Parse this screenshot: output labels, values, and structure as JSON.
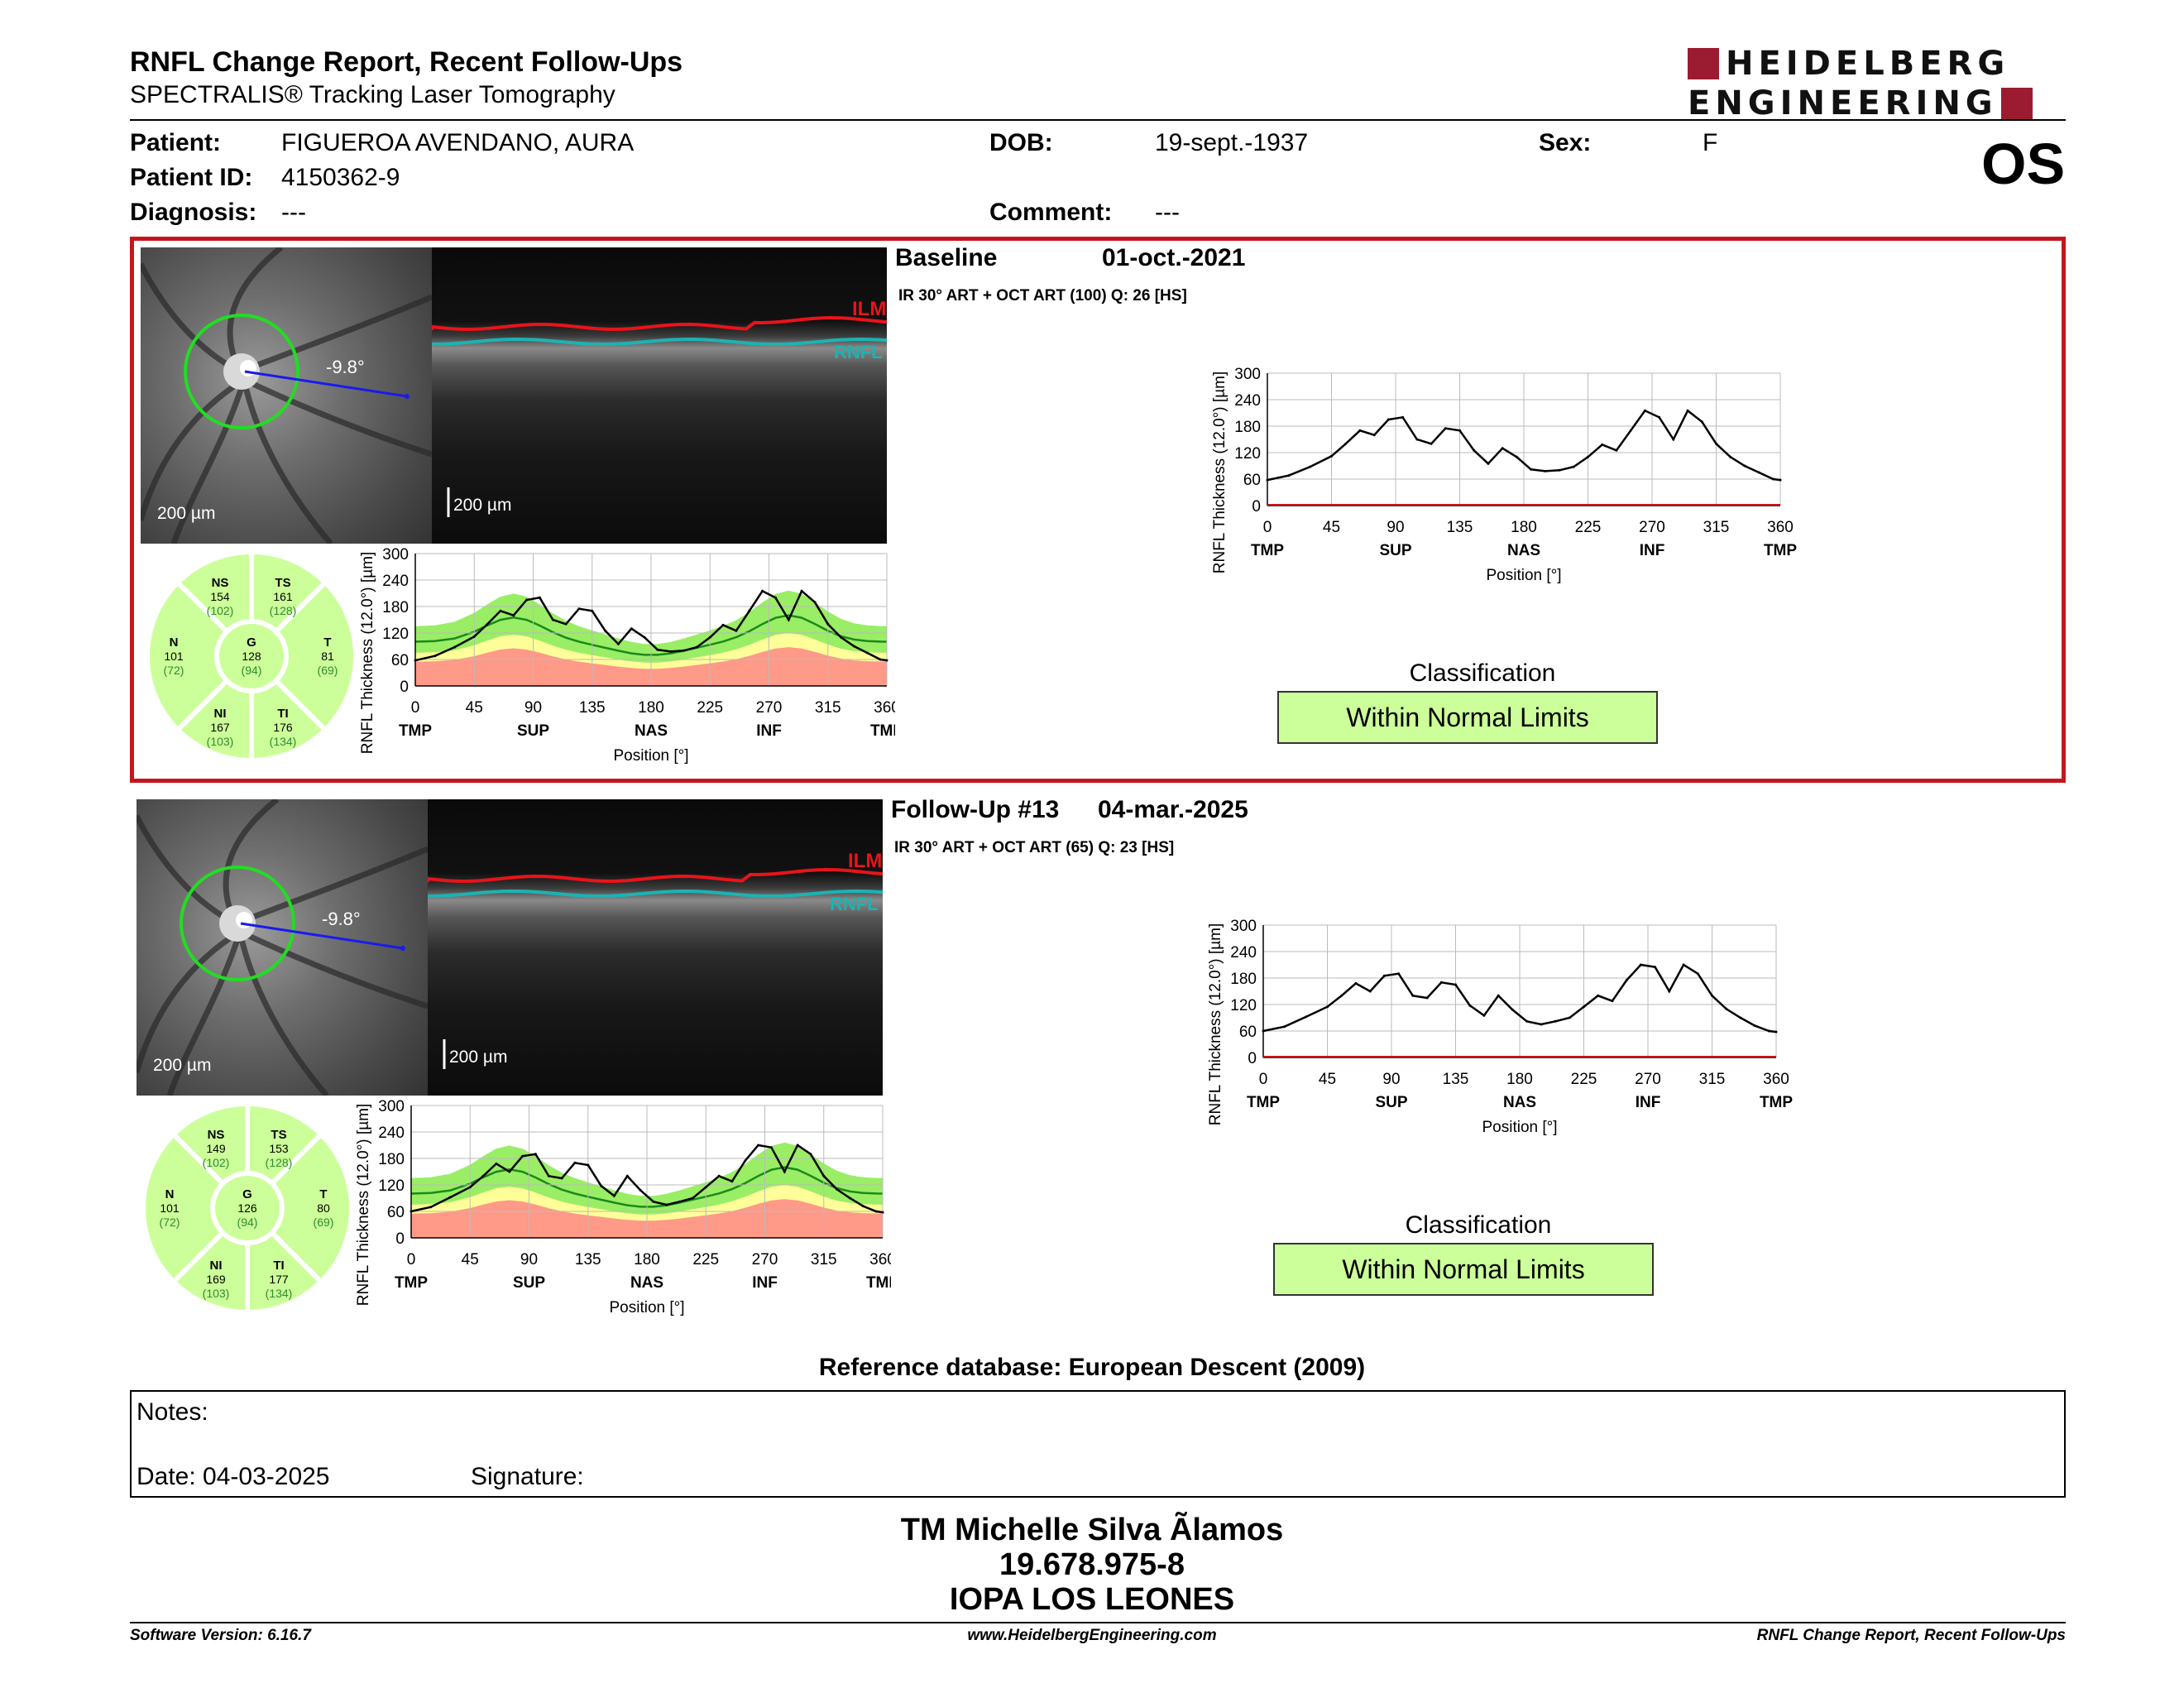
{
  "header": {
    "title": "RNFL Change Report, Recent Follow-Ups",
    "subtitle": "SPECTRALIS® Tracking Laser Tomography",
    "logo_line1": "HEIDELBERG",
    "logo_line2": "ENGINEERING",
    "eye": "OS"
  },
  "patient": {
    "patient_label": "Patient:",
    "patient_value": "FIGUEROA AVENDANO, AURA",
    "id_label": "Patient ID:",
    "id_value": "4150362-9",
    "diagnosis_label": "Diagnosis:",
    "diagnosis_value": "---",
    "dob_label": "DOB:",
    "dob_value": "19-sept.-1937",
    "comment_label": "Comment:",
    "comment_value": "---",
    "sex_label": "Sex:",
    "sex_value": "F"
  },
  "common": {
    "scale": "200 µm",
    "angle": "-9.8°",
    "ilm": "ILM",
    "rnfl": "RNFL",
    "ylabel": "RNFL Thickness (12.0°) [µm]",
    "xlabel": "Position [°]",
    "classification_title": "Classification"
  },
  "exams": [
    {
      "title": "Baseline",
      "date": "01-oct.-2021",
      "scan": "IR 30° ART + OCT ART (100) Q: 26 [HS]",
      "classification": "Within Normal Limits",
      "sectors": {
        "NS": {
          "name": "NS",
          "value": "154",
          "ref": "(102)"
        },
        "TS": {
          "name": "TS",
          "value": "161",
          "ref": "(128)"
        },
        "N": {
          "name": "N",
          "value": "101",
          "ref": "(72)"
        },
        "G": {
          "name": "G",
          "value": "128",
          "ref": "(94)"
        },
        "T": {
          "name": "T",
          "value": "81",
          "ref": "(69)"
        },
        "NI": {
          "name": "NI",
          "value": "167",
          "ref": "(103)"
        },
        "TI": {
          "name": "TI",
          "value": "176",
          "ref": "(134)"
        }
      }
    },
    {
      "title": "Follow-Up #13",
      "date": "04-mar.-2025",
      "scan": "IR 30° ART + OCT ART (65) Q: 23 [HS]",
      "classification": "Within Normal Limits",
      "sectors": {
        "NS": {
          "name": "NS",
          "value": "149",
          "ref": "(102)"
        },
        "TS": {
          "name": "TS",
          "value": "153",
          "ref": "(128)"
        },
        "N": {
          "name": "N",
          "value": "101",
          "ref": "(72)"
        },
        "G": {
          "name": "G",
          "value": "126",
          "ref": "(94)"
        },
        "T": {
          "name": "T",
          "value": "80",
          "ref": "(69)"
        },
        "NI": {
          "name": "NI",
          "value": "169",
          "ref": "(103)"
        },
        "TI": {
          "name": "TI",
          "value": "177",
          "ref": "(134)"
        }
      }
    }
  ],
  "chart_data": [
    {
      "type": "line",
      "ylabel": "RNFL Thickness (12.0°) [µm]",
      "xlabel": "Position [°]",
      "ylim": [
        0,
        300
      ],
      "xlim": [
        0,
        360
      ],
      "yticks": [
        0,
        60,
        120,
        180,
        240,
        300
      ],
      "xticks": [
        0,
        45,
        90,
        135,
        180,
        225,
        270,
        315,
        360
      ],
      "sector_labels": [
        {
          "x": 0,
          "text": "TMP"
        },
        {
          "x": 90,
          "text": "SUP"
        },
        {
          "x": 180,
          "text": "NAS"
        },
        {
          "x": 270,
          "text": "INF"
        },
        {
          "x": 360,
          "text": "TMP"
        }
      ],
      "x": [
        0,
        15,
        30,
        45,
        55,
        65,
        75,
        85,
        95,
        105,
        115,
        125,
        135,
        145,
        155,
        165,
        175,
        185,
        195,
        205,
        215,
        225,
        235,
        245,
        255,
        265,
        275,
        285,
        295,
        305,
        315,
        325,
        335,
        345,
        355,
        360
      ],
      "series": [
        {
          "values": [
            58,
            68,
            88,
            112,
            140,
            170,
            160,
            195,
            200,
            150,
            140,
            175,
            170,
            125,
            95,
            130,
            110,
            82,
            78,
            80,
            88,
            110,
            138,
            125,
            170,
            215,
            200,
            150,
            215,
            190,
            140,
            110,
            90,
            75,
            60,
            58
          ]
        }
      ],
      "grid": true
    },
    {
      "type": "line",
      "ylabel": "RNFL Thickness (12.0°) [µm]",
      "xlabel": "Position [°]",
      "ylim": [
        0,
        300
      ],
      "xlim": [
        0,
        360
      ],
      "yticks": [
        0,
        60,
        120,
        180,
        240,
        300
      ],
      "xticks": [
        0,
        45,
        90,
        135,
        180,
        225,
        270,
        315,
        360
      ],
      "sector_labels": [
        {
          "x": 0,
          "text": "TMP"
        },
        {
          "x": 90,
          "text": "SUP"
        },
        {
          "x": 180,
          "text": "NAS"
        },
        {
          "x": 270,
          "text": "INF"
        },
        {
          "x": 360,
          "text": "TMP"
        }
      ],
      "x": [
        0,
        15,
        30,
        45,
        55,
        65,
        75,
        85,
        95,
        105,
        115,
        125,
        135,
        145,
        155,
        165,
        175,
        185,
        195,
        205,
        215,
        225,
        235,
        245,
        255,
        265,
        275,
        285,
        295,
        305,
        315,
        325,
        335,
        345,
        355,
        360
      ],
      "series": [
        {
          "values": [
            60,
            70,
            92,
            115,
            140,
            168,
            150,
            185,
            190,
            140,
            135,
            170,
            165,
            118,
            95,
            140,
            108,
            82,
            75,
            82,
            90,
            115,
            140,
            128,
            175,
            210,
            205,
            150,
            210,
            190,
            140,
            110,
            90,
            72,
            60,
            58
          ]
        }
      ],
      "grid": true
    }
  ],
  "reference_db": "Reference database: European Descent (2009)",
  "notes": {
    "notes_label": "Notes:",
    "date_label": "Date: 04-03-2025",
    "signature_label": "Signature:"
  },
  "signer": {
    "name": "TM Michelle Silva Ãlamos",
    "rut": "19.678.975-8",
    "org": "IOPA LOS LEONES"
  },
  "footer": {
    "version": "Software Version: 6.16.7",
    "website": "www.HeidelbergEngineering.com",
    "report": "RNFL Change Report, Recent Follow-Ups"
  },
  "colors": {
    "border_red": "#c4161c",
    "logo_red": "#9b1b30",
    "normal_green": "#ccff99",
    "ilm": "#e8141a",
    "rnfl": "#1bb3b3"
  }
}
